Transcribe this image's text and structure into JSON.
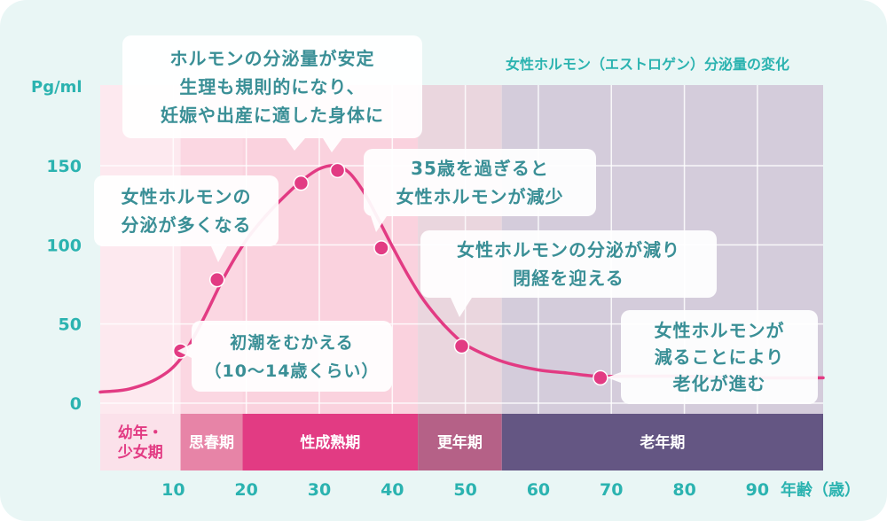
{
  "chart_data": {
    "type": "line",
    "title": "女性ホルモン（エストロゲン）分泌量の変化",
    "ylabel": "Pg/ml",
    "xlabel": "年齢（歳）",
    "x_ticks": [
      10,
      20,
      30,
      40,
      50,
      60,
      70,
      80,
      90
    ],
    "y_ticks": [
      0,
      50,
      100,
      150
    ],
    "xlim": [
      0,
      99
    ],
    "ylim": [
      0,
      150
    ],
    "grid": true,
    "series": [
      {
        "color": "#e23b83",
        "x": [
          0,
          4,
          8,
          11,
          14,
          17,
          20,
          23,
          26,
          28,
          30,
          32,
          34,
          36,
          38,
          40,
          42,
          44,
          46,
          48,
          50,
          53,
          56,
          60,
          64,
          68,
          72,
          80,
          90,
          99
        ],
        "y": [
          7,
          9,
          16,
          28,
          52,
          80,
          103,
          120,
          134,
          142,
          148,
          150,
          146,
          134,
          117,
          99,
          82,
          67,
          55,
          45,
          37,
          30,
          25,
          21,
          19,
          17,
          17,
          17,
          16,
          16
        ]
      }
    ],
    "markers": [
      {
        "x": 11,
        "y": 33
      },
      {
        "x": 16,
        "y": 78
      },
      {
        "x": 27.5,
        "y": 139
      },
      {
        "x": 32.5,
        "y": 147
      },
      {
        "x": 38.5,
        "y": 98
      },
      {
        "x": 49.5,
        "y": 36
      },
      {
        "x": 68.5,
        "y": 16
      }
    ],
    "stages": [
      {
        "label": "幼年・\n少女期",
        "from": 0,
        "to": 11,
        "color": "#fbe1ea",
        "text_color": "#e23b83",
        "bg": "#fde9ef"
      },
      {
        "label": "思春期",
        "from": 11,
        "to": 19.5,
        "color": "#e784a7",
        "text_color": "#ffffff",
        "bg": "#fbd7e2"
      },
      {
        "label": "性成熟期",
        "from": 19.5,
        "to": 43.5,
        "color": "#e23b83",
        "text_color": "#ffffff",
        "bg": "#fad2de"
      },
      {
        "label": "更年期",
        "from": 43.5,
        "to": 55,
        "color": "#b56187",
        "text_color": "#ffffff",
        "bg": "#ead6de"
      },
      {
        "label": "老年期",
        "from": 55,
        "to": 99,
        "color": "#645683",
        "text_color": "#ffffff",
        "bg": "#d4ccdb"
      }
    ],
    "annotations": [
      {
        "lines": [
          "ホルモンの分泌量が安定",
          "生理も規則的になり、",
          "妊娠や出産に適した身体に"
        ]
      },
      {
        "lines": [
          "女性ホルモンの",
          "分泌が多くなる"
        ]
      },
      {
        "lines": [
          "35歳を過ぎると",
          "女性ホルモンが減少"
        ]
      },
      {
        "lines": [
          "女性ホルモンの分泌が減り",
          "閉経を迎える"
        ]
      },
      {
        "lines": [
          "初潮をむかえる",
          "（10〜14歳くらい）"
        ]
      },
      {
        "lines": [
          "女性ホルモンが",
          "減ることにより",
          "老化が進む"
        ]
      }
    ]
  }
}
